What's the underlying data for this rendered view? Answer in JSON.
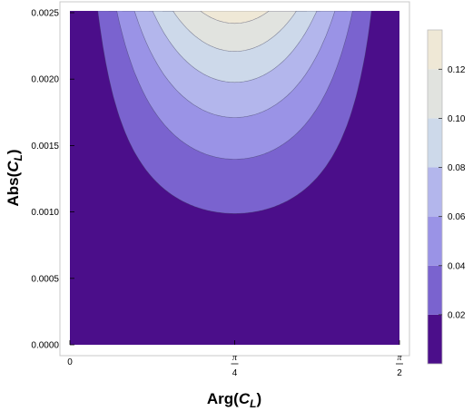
{
  "chart_data": {
    "type": "contour",
    "title": "",
    "xlabel": {
      "prefix": "Arg(",
      "var": "C",
      "sub": "L",
      "suffix": ")"
    },
    "ylabel": {
      "prefix": "Abs(",
      "var": "C",
      "sub": "L",
      "suffix": ")"
    },
    "xlim": [
      0,
      1.5708
    ],
    "ylim": [
      0,
      0.0025
    ],
    "x_ticks": [
      {
        "value": 0,
        "num": "0",
        "den": ""
      },
      {
        "value": 0.7854,
        "num": "π",
        "den": "4"
      },
      {
        "value": 1.5708,
        "num": "π",
        "den": "2"
      }
    ],
    "y_ticks": [
      {
        "value": 0.0,
        "label": "0.0000"
      },
      {
        "value": 0.0005,
        "label": "0.0005"
      },
      {
        "value": 0.001,
        "label": "0.0010"
      },
      {
        "value": 0.0015,
        "label": "0.0015"
      },
      {
        "value": 0.002,
        "label": "0.0020"
      },
      {
        "value": 0.0025,
        "label": "0.0025"
      }
    ],
    "contour_levels": [
      0.02,
      0.04,
      0.06,
      0.08,
      0.1,
      0.12
    ],
    "level_colors": [
      "#4b0e8a",
      "#7a63cf",
      "#9a93e6",
      "#b3b6ec",
      "#cdd9ea",
      "#e1e3df",
      "#efe8d6"
    ],
    "colorbar": {
      "range": [
        0,
        0.136
      ],
      "ticks": [
        {
          "value": 0.02,
          "label": "0.02"
        },
        {
          "value": 0.04,
          "label": "0.04"
        },
        {
          "value": 0.06,
          "label": "0.06"
        },
        {
          "value": 0.08,
          "label": "0.08"
        },
        {
          "value": 0.1,
          "label": "0.10"
        },
        {
          "value": 0.12,
          "label": "0.12"
        }
      ]
    },
    "legend_position": "right",
    "grid": false
  }
}
